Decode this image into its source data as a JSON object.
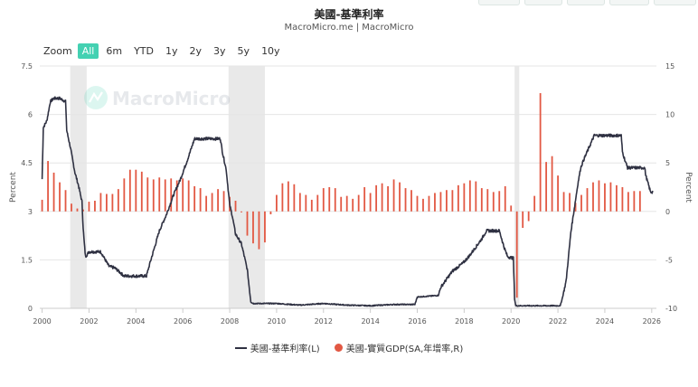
{
  "header": {
    "title": "美國-基準利率",
    "subtitle": "MacroMicro.me | MacroMicro"
  },
  "zoom": {
    "label": "Zoom",
    "buttons": [
      "All",
      "6m",
      "YTD",
      "1y",
      "2y",
      "3y",
      "5y",
      "10y"
    ],
    "active": "All"
  },
  "watermark": "MacroMicro",
  "colors": {
    "rate_line": "#2f3142",
    "gdp_bars": "#e25843",
    "recession": "#e9e9e9",
    "accent": "#44d1b2"
  },
  "chart_data": {
    "type": "line+bar",
    "x_range": [
      1999.9,
      2026.2
    ],
    "x_ticks": [
      "2000",
      "2002",
      "2004",
      "2006",
      "2008",
      "2010",
      "2012",
      "2014",
      "2016",
      "2018",
      "2020",
      "2022",
      "2024",
      "2026"
    ],
    "left_axis": {
      "label": "Percent",
      "range": [
        0,
        7.5
      ],
      "ticks": [
        "0",
        "1.5",
        "3",
        "4.5",
        "6",
        "7.5"
      ]
    },
    "right_axis": {
      "label": "Percent",
      "range": [
        -10,
        15
      ],
      "ticks": [
        "-10",
        "-5",
        "0",
        "5",
        "10",
        "15"
      ]
    },
    "recessions": [
      [
        2001.2,
        2001.9
      ],
      [
        2007.95,
        2009.5
      ],
      [
        2020.15,
        2020.35
      ]
    ],
    "series": [
      {
        "name": "美國-基準利率(L)",
        "axis": "left",
        "type": "line",
        "points": [
          [
            2000.0,
            4.0
          ],
          [
            2000.05,
            5.6
          ],
          [
            2000.2,
            5.8
          ],
          [
            2000.35,
            6.4
          ],
          [
            2000.5,
            6.5
          ],
          [
            2000.75,
            6.5
          ],
          [
            2001.0,
            6.4
          ],
          [
            2001.05,
            5.5
          ],
          [
            2001.2,
            5.0
          ],
          [
            2001.4,
            4.2
          ],
          [
            2001.55,
            3.8
          ],
          [
            2001.7,
            3.3
          ],
          [
            2001.75,
            2.5
          ],
          [
            2001.8,
            2.0
          ],
          [
            2001.85,
            1.6
          ],
          [
            2002.0,
            1.75
          ],
          [
            2002.5,
            1.75
          ],
          [
            2002.85,
            1.3
          ],
          [
            2003.1,
            1.25
          ],
          [
            2003.5,
            1.0
          ],
          [
            2004.0,
            1.0
          ],
          [
            2004.45,
            1.0
          ],
          [
            2004.6,
            1.4
          ],
          [
            2004.8,
            1.9
          ],
          [
            2005.0,
            2.4
          ],
          [
            2005.3,
            2.9
          ],
          [
            2005.6,
            3.5
          ],
          [
            2005.9,
            4.0
          ],
          [
            2006.2,
            4.6
          ],
          [
            2006.5,
            5.25
          ],
          [
            2007.0,
            5.25
          ],
          [
            2007.6,
            5.25
          ],
          [
            2007.7,
            4.8
          ],
          [
            2007.85,
            4.3
          ],
          [
            2008.0,
            3.2
          ],
          [
            2008.1,
            2.9
          ],
          [
            2008.25,
            2.3
          ],
          [
            2008.5,
            2.0
          ],
          [
            2008.75,
            1.2
          ],
          [
            2008.9,
            0.2
          ],
          [
            2009.0,
            0.15
          ],
          [
            2010.0,
            0.15
          ],
          [
            2011.0,
            0.1
          ],
          [
            2012.0,
            0.15
          ],
          [
            2013.0,
            0.1
          ],
          [
            2014.0,
            0.08
          ],
          [
            2015.0,
            0.12
          ],
          [
            2015.9,
            0.12
          ],
          [
            2016.0,
            0.35
          ],
          [
            2016.9,
            0.4
          ],
          [
            2017.0,
            0.65
          ],
          [
            2017.25,
            0.9
          ],
          [
            2017.5,
            1.15
          ],
          [
            2017.95,
            1.4
          ],
          [
            2018.25,
            1.65
          ],
          [
            2018.5,
            1.9
          ],
          [
            2018.75,
            2.15
          ],
          [
            2018.95,
            2.4
          ],
          [
            2019.5,
            2.4
          ],
          [
            2019.6,
            2.15
          ],
          [
            2019.7,
            1.9
          ],
          [
            2019.85,
            1.6
          ],
          [
            2020.1,
            1.55
          ],
          [
            2020.15,
            0.3
          ],
          [
            2020.2,
            0.08
          ],
          [
            2021.0,
            0.08
          ],
          [
            2022.1,
            0.08
          ],
          [
            2022.2,
            0.35
          ],
          [
            2022.35,
            0.85
          ],
          [
            2022.45,
            1.6
          ],
          [
            2022.55,
            2.35
          ],
          [
            2022.7,
            3.1
          ],
          [
            2022.85,
            3.85
          ],
          [
            2022.97,
            4.35
          ],
          [
            2023.1,
            4.6
          ],
          [
            2023.25,
            4.85
          ],
          [
            2023.4,
            5.1
          ],
          [
            2023.55,
            5.35
          ],
          [
            2024.7,
            5.35
          ],
          [
            2024.75,
            4.85
          ],
          [
            2024.85,
            4.6
          ],
          [
            2024.97,
            4.35
          ],
          [
            2025.7,
            4.35
          ],
          [
            2025.75,
            4.1
          ],
          [
            2025.85,
            3.85
          ],
          [
            2025.95,
            3.6
          ],
          [
            2026.05,
            3.6
          ]
        ]
      },
      {
        "name": "美國-實質GDP(SA,年增率,R)",
        "axis": "right",
        "type": "bar",
        "points": [
          [
            2000.0,
            1.2
          ],
          [
            2000.25,
            5.2
          ],
          [
            2000.5,
            4.0
          ],
          [
            2000.75,
            3.0
          ],
          [
            2001.0,
            2.2
          ],
          [
            2001.25,
            0.8
          ],
          [
            2001.5,
            0.3
          ],
          [
            2001.75,
            0.2
          ],
          [
            2002.0,
            1.0
          ],
          [
            2002.25,
            1.1
          ],
          [
            2002.5,
            1.9
          ],
          [
            2002.75,
            1.8
          ],
          [
            2003.0,
            1.8
          ],
          [
            2003.25,
            2.3
          ],
          [
            2003.5,
            3.4
          ],
          [
            2003.75,
            4.3
          ],
          [
            2004.0,
            4.3
          ],
          [
            2004.25,
            4.1
          ],
          [
            2004.5,
            3.5
          ],
          [
            2004.75,
            3.3
          ],
          [
            2005.0,
            3.5
          ],
          [
            2005.25,
            3.3
          ],
          [
            2005.5,
            3.4
          ],
          [
            2005.75,
            3.2
          ],
          [
            2006.0,
            3.4
          ],
          [
            2006.25,
            3.2
          ],
          [
            2006.5,
            2.6
          ],
          [
            2006.75,
            2.4
          ],
          [
            2007.0,
            1.6
          ],
          [
            2007.25,
            1.9
          ],
          [
            2007.5,
            2.3
          ],
          [
            2007.75,
            2.1
          ],
          [
            2008.0,
            1.5
          ],
          [
            2008.25,
            1.1
          ],
          [
            2008.5,
            -0.1
          ],
          [
            2008.75,
            -2.5
          ],
          [
            2009.0,
            -3.3
          ],
          [
            2009.25,
            -3.9
          ],
          [
            2009.5,
            -3.2
          ],
          [
            2009.75,
            -0.3
          ],
          [
            2010.0,
            1.7
          ],
          [
            2010.25,
            2.9
          ],
          [
            2010.5,
            3.1
          ],
          [
            2010.75,
            2.8
          ],
          [
            2011.0,
            1.9
          ],
          [
            2011.25,
            1.7
          ],
          [
            2011.5,
            1.2
          ],
          [
            2011.75,
            1.7
          ],
          [
            2012.0,
            2.4
          ],
          [
            2012.25,
            2.5
          ],
          [
            2012.5,
            2.4
          ],
          [
            2012.75,
            1.5
          ],
          [
            2013.0,
            1.6
          ],
          [
            2013.25,
            1.3
          ],
          [
            2013.5,
            1.7
          ],
          [
            2013.75,
            2.5
          ],
          [
            2014.0,
            1.9
          ],
          [
            2014.25,
            2.7
          ],
          [
            2014.5,
            2.9
          ],
          [
            2014.75,
            2.6
          ],
          [
            2015.0,
            3.3
          ],
          [
            2015.25,
            3.0
          ],
          [
            2015.5,
            2.4
          ],
          [
            2015.75,
            2.2
          ],
          [
            2016.0,
            1.6
          ],
          [
            2016.25,
            1.3
          ],
          [
            2016.5,
            1.6
          ],
          [
            2016.75,
            1.9
          ],
          [
            2017.0,
            2.0
          ],
          [
            2017.25,
            2.2
          ],
          [
            2017.5,
            2.2
          ],
          [
            2017.75,
            2.7
          ],
          [
            2018.0,
            2.9
          ],
          [
            2018.25,
            3.2
          ],
          [
            2018.5,
            3.1
          ],
          [
            2018.75,
            2.4
          ],
          [
            2019.0,
            2.3
          ],
          [
            2019.25,
            2.0
          ],
          [
            2019.5,
            2.1
          ],
          [
            2019.75,
            2.6
          ],
          [
            2020.0,
            0.6
          ],
          [
            2020.25,
            -8.9
          ],
          [
            2020.5,
            -1.7
          ],
          [
            2020.75,
            -1.0
          ],
          [
            2021.0,
            1.6
          ],
          [
            2021.25,
            12.2
          ],
          [
            2021.5,
            5.1
          ],
          [
            2021.75,
            5.7
          ],
          [
            2022.0,
            3.7
          ],
          [
            2022.25,
            2.0
          ],
          [
            2022.5,
            1.9
          ],
          [
            2022.75,
            0.9
          ],
          [
            2023.0,
            1.7
          ],
          [
            2023.25,
            2.4
          ],
          [
            2023.5,
            3.0
          ],
          [
            2023.75,
            3.2
          ],
          [
            2024.0,
            2.9
          ],
          [
            2024.25,
            3.0
          ],
          [
            2024.5,
            2.7
          ],
          [
            2024.75,
            2.5
          ],
          [
            2025.0,
            2.0
          ],
          [
            2025.25,
            2.1
          ],
          [
            2025.5,
            2.1
          ]
        ]
      }
    ]
  }
}
